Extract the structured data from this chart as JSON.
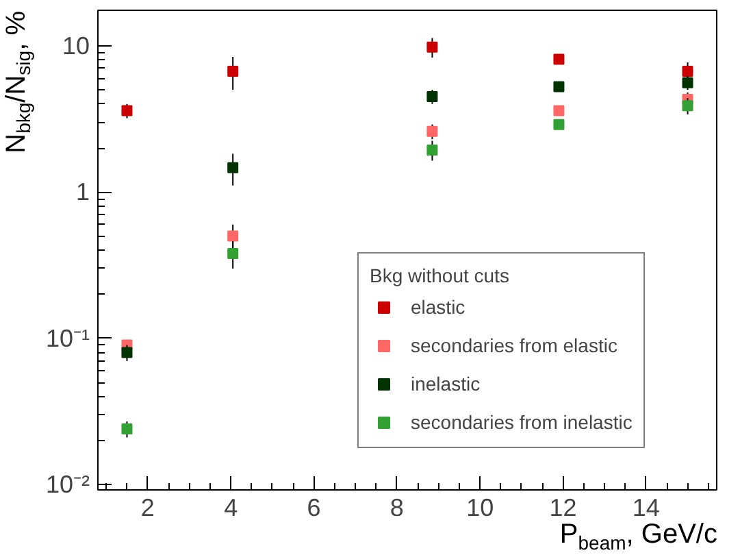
{
  "chart_data": {
    "type": "scatter",
    "xlabel": "P$_{beam}$, GeV/c",
    "ylabel": "N$_{bkg}$/N$_{sig}$, %",
    "legend_title": "Bkg without cuts",
    "legend": "bottom right",
    "marker": "square",
    "log": "y",
    "grid": false,
    "x": [
      1.5,
      4.05,
      8.85,
      11.9,
      15.0
    ],
    "xlim": [
      0.8,
      15.7
    ],
    "xticks": [
      2,
      4,
      6,
      8,
      10,
      12,
      14
    ],
    "ylim": [
      0.0092,
      17.5
    ],
    "yticks": [
      {
        "value": 0.01,
        "label": "10⁻²"
      },
      {
        "value": 0.1,
        "label": "10⁻¹"
      },
      1,
      10
    ],
    "series": [
      {
        "name": "elastic",
        "color": "#cc0000",
        "values": [
          3.6,
          6.7,
          9.8,
          8.1,
          6.7
        ],
        "errors": [
          0.4,
          1.7,
          1.5,
          null,
          1.0
        ]
      },
      {
        "name": "secondaries from elastic",
        "color": "#ff6666",
        "values": [
          0.09,
          0.5,
          2.6,
          3.6,
          4.3
        ],
        "errors": [
          null,
          0.1,
          0.3,
          null,
          0.5
        ]
      },
      {
        "name": "inelastic",
        "color": "#003300",
        "values": [
          0.08,
          1.47,
          4.5,
          5.25,
          5.6
        ],
        "errors": [
          0.01,
          0.36,
          0.5,
          null,
          0.6
        ]
      },
      {
        "name": "secondaries from inelastic",
        "color": "#33a033",
        "values": [
          0.024,
          0.38,
          1.94,
          2.9,
          3.9
        ],
        "errors": [
          0.003,
          0.08,
          0.3,
          null,
          0.5
        ]
      }
    ]
  }
}
